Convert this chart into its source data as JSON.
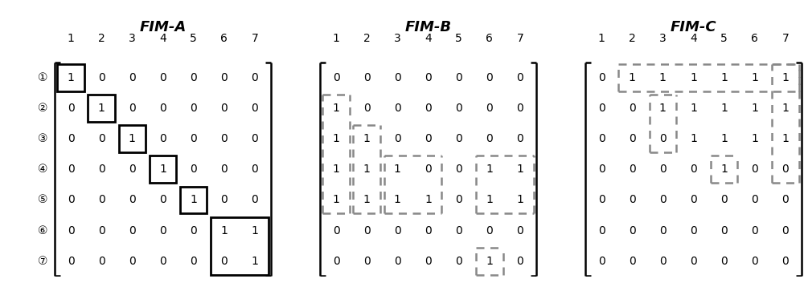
{
  "title_A": "FIM-A",
  "title_B": "FIM-B",
  "title_C": "FIM-C",
  "row_labels": [
    "①",
    "②",
    "③",
    "④",
    "⑤",
    "⑥",
    "⑦"
  ],
  "col_labels": [
    "1",
    "2",
    "3",
    "4",
    "5",
    "6",
    "7"
  ],
  "matrix_A": [
    [
      1,
      0,
      0,
      0,
      0,
      0,
      0
    ],
    [
      0,
      1,
      0,
      0,
      0,
      0,
      0
    ],
    [
      0,
      0,
      1,
      0,
      0,
      0,
      0
    ],
    [
      0,
      0,
      0,
      1,
      0,
      0,
      0
    ],
    [
      0,
      0,
      0,
      0,
      1,
      0,
      0
    ],
    [
      0,
      0,
      0,
      0,
      0,
      1,
      1
    ],
    [
      0,
      0,
      0,
      0,
      0,
      0,
      1
    ]
  ],
  "matrix_B": [
    [
      0,
      0,
      0,
      0,
      0,
      0,
      0
    ],
    [
      1,
      0,
      0,
      0,
      0,
      0,
      0
    ],
    [
      1,
      1,
      0,
      0,
      0,
      0,
      0
    ],
    [
      1,
      1,
      1,
      0,
      0,
      1,
      1
    ],
    [
      1,
      1,
      1,
      1,
      0,
      1,
      1
    ],
    [
      0,
      0,
      0,
      0,
      0,
      0,
      0
    ],
    [
      0,
      0,
      0,
      0,
      0,
      1,
      0
    ]
  ],
  "matrix_C": [
    [
      0,
      1,
      1,
      1,
      1,
      1,
      1
    ],
    [
      0,
      0,
      1,
      1,
      1,
      1,
      1
    ],
    [
      0,
      0,
      0,
      1,
      1,
      1,
      1
    ],
    [
      0,
      0,
      0,
      0,
      1,
      0,
      0
    ],
    [
      0,
      0,
      0,
      0,
      0,
      0,
      0
    ],
    [
      0,
      0,
      0,
      0,
      0,
      0,
      0
    ],
    [
      0,
      0,
      0,
      0,
      0,
      0,
      0
    ]
  ],
  "boxes_A_solid": [
    {
      "rows": [
        0,
        0
      ],
      "cols": [
        0,
        0
      ]
    },
    {
      "rows": [
        1,
        1
      ],
      "cols": [
        1,
        1
      ]
    },
    {
      "rows": [
        2,
        2
      ],
      "cols": [
        2,
        2
      ]
    },
    {
      "rows": [
        3,
        3
      ],
      "cols": [
        3,
        3
      ]
    },
    {
      "rows": [
        4,
        4
      ],
      "cols": [
        4,
        4
      ]
    },
    {
      "rows": [
        5,
        6
      ],
      "cols": [
        5,
        6
      ]
    }
  ],
  "boxes_B_dashed": [
    {
      "rows": [
        1,
        4
      ],
      "cols": [
        0,
        0
      ]
    },
    {
      "rows": [
        2,
        4
      ],
      "cols": [
        1,
        1
      ]
    },
    {
      "rows": [
        3,
        4
      ],
      "cols": [
        2,
        3
      ]
    },
    {
      "rows": [
        3,
        4
      ],
      "cols": [
        5,
        6
      ]
    },
    {
      "rows": [
        6,
        6
      ],
      "cols": [
        5,
        5
      ]
    }
  ],
  "boxes_C_dashed": [
    {
      "rows": [
        0,
        0
      ],
      "cols": [
        1,
        6
      ]
    },
    {
      "rows": [
        1,
        2
      ],
      "cols": [
        2,
        2
      ]
    },
    {
      "rows": [
        3,
        3
      ],
      "cols": [
        4,
        4
      ]
    },
    {
      "rows": [
        0,
        3
      ],
      "cols": [
        6,
        6
      ]
    }
  ]
}
